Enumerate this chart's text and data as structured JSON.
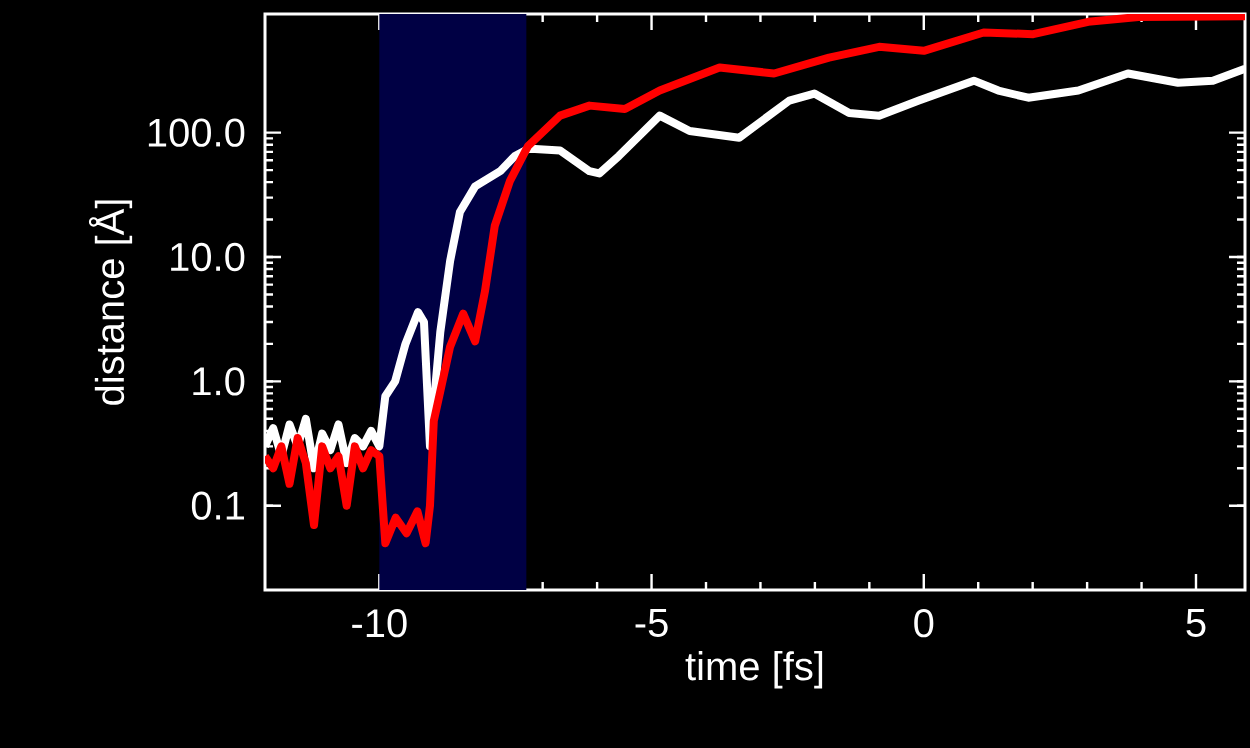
{
  "chart_data": {
    "type": "line",
    "xlabel": "time [fs]",
    "ylabel": "distance [Å]",
    "log": "y",
    "xlim": [
      -12.1,
      5.9
    ],
    "ylim": [
      0.021,
      900
    ],
    "xticks": [
      -10,
      -5,
      0,
      5
    ],
    "yticks": [
      {
        "value": 0.1,
        "label": "0.1"
      },
      {
        "value": 1,
        "label": "1.0"
      },
      {
        "value": 10,
        "label": "10.0"
      },
      {
        "value": 100,
        "label": "100.0"
      }
    ],
    "bands": [
      {
        "axis": "x",
        "from": -10,
        "to": -7.3,
        "color": "#000044"
      }
    ],
    "series": [
      {
        "color": "#ffffff",
        "x": [
          -12.1,
          -11.95,
          -11.8,
          -11.65,
          -11.5,
          -11.35,
          -11.2,
          -11.05,
          -10.9,
          -10.75,
          -10.6,
          -10.45,
          -10.3,
          -10.15,
          -10.0,
          -9.89,
          -9.71,
          -9.52,
          -9.29,
          -9.18,
          -9.07,
          -8.88,
          -8.7,
          -8.52,
          -8.24,
          -7.78,
          -7.51,
          -7.27,
          -7.14,
          -6.68,
          -6.14,
          -5.96,
          -5.6,
          -4.85,
          -4.3,
          -3.39,
          -2.47,
          -2.01,
          -1.37,
          -0.82,
          -0.09,
          0.92,
          1.37,
          1.92,
          2.84,
          3.75,
          4.67,
          5.31,
          5.9
        ],
        "values": [
          0.3,
          0.42,
          0.25,
          0.45,
          0.3,
          0.5,
          0.2,
          0.38,
          0.28,
          0.45,
          0.22,
          0.35,
          0.3,
          0.4,
          0.3,
          0.76,
          1.0,
          2.0,
          3.6,
          3.0,
          0.3,
          2.5,
          9.3,
          23,
          37,
          49,
          65,
          74,
          74,
          72,
          49,
          47,
          65,
          137,
          103,
          91,
          181,
          206,
          144,
          137,
          181,
          262,
          218,
          191,
          218,
          299,
          252,
          262,
          327
        ]
      },
      {
        "color": "#ff0000",
        "x": [
          -12.1,
          -11.95,
          -11.8,
          -11.65,
          -11.5,
          -11.35,
          -11.2,
          -11.05,
          -10.9,
          -10.75,
          -10.6,
          -10.45,
          -10.3,
          -10.15,
          -10.0,
          -9.89,
          -9.7,
          -9.5,
          -9.3,
          -9.15,
          -9.07,
          -9.0,
          -8.7,
          -8.46,
          -8.24,
          -8.06,
          -7.88,
          -7.6,
          -7.27,
          -6.68,
          -6.14,
          -5.49,
          -4.85,
          -3.75,
          -2.75,
          -1.74,
          -0.82,
          0.0,
          1.1,
          2.01,
          3.02,
          3.94,
          5.9
        ],
        "values": [
          0.25,
          0.2,
          0.3,
          0.15,
          0.35,
          0.22,
          0.07,
          0.3,
          0.2,
          0.25,
          0.1,
          0.3,
          0.2,
          0.28,
          0.25,
          0.05,
          0.08,
          0.06,
          0.09,
          0.05,
          0.1,
          0.48,
          1.9,
          3.5,
          2.1,
          5.3,
          17.8,
          41,
          78,
          137,
          165,
          155,
          218,
          334,
          299,
          401,
          490,
          455,
          639,
          619,
          779,
          852,
          865
        ]
      }
    ]
  }
}
